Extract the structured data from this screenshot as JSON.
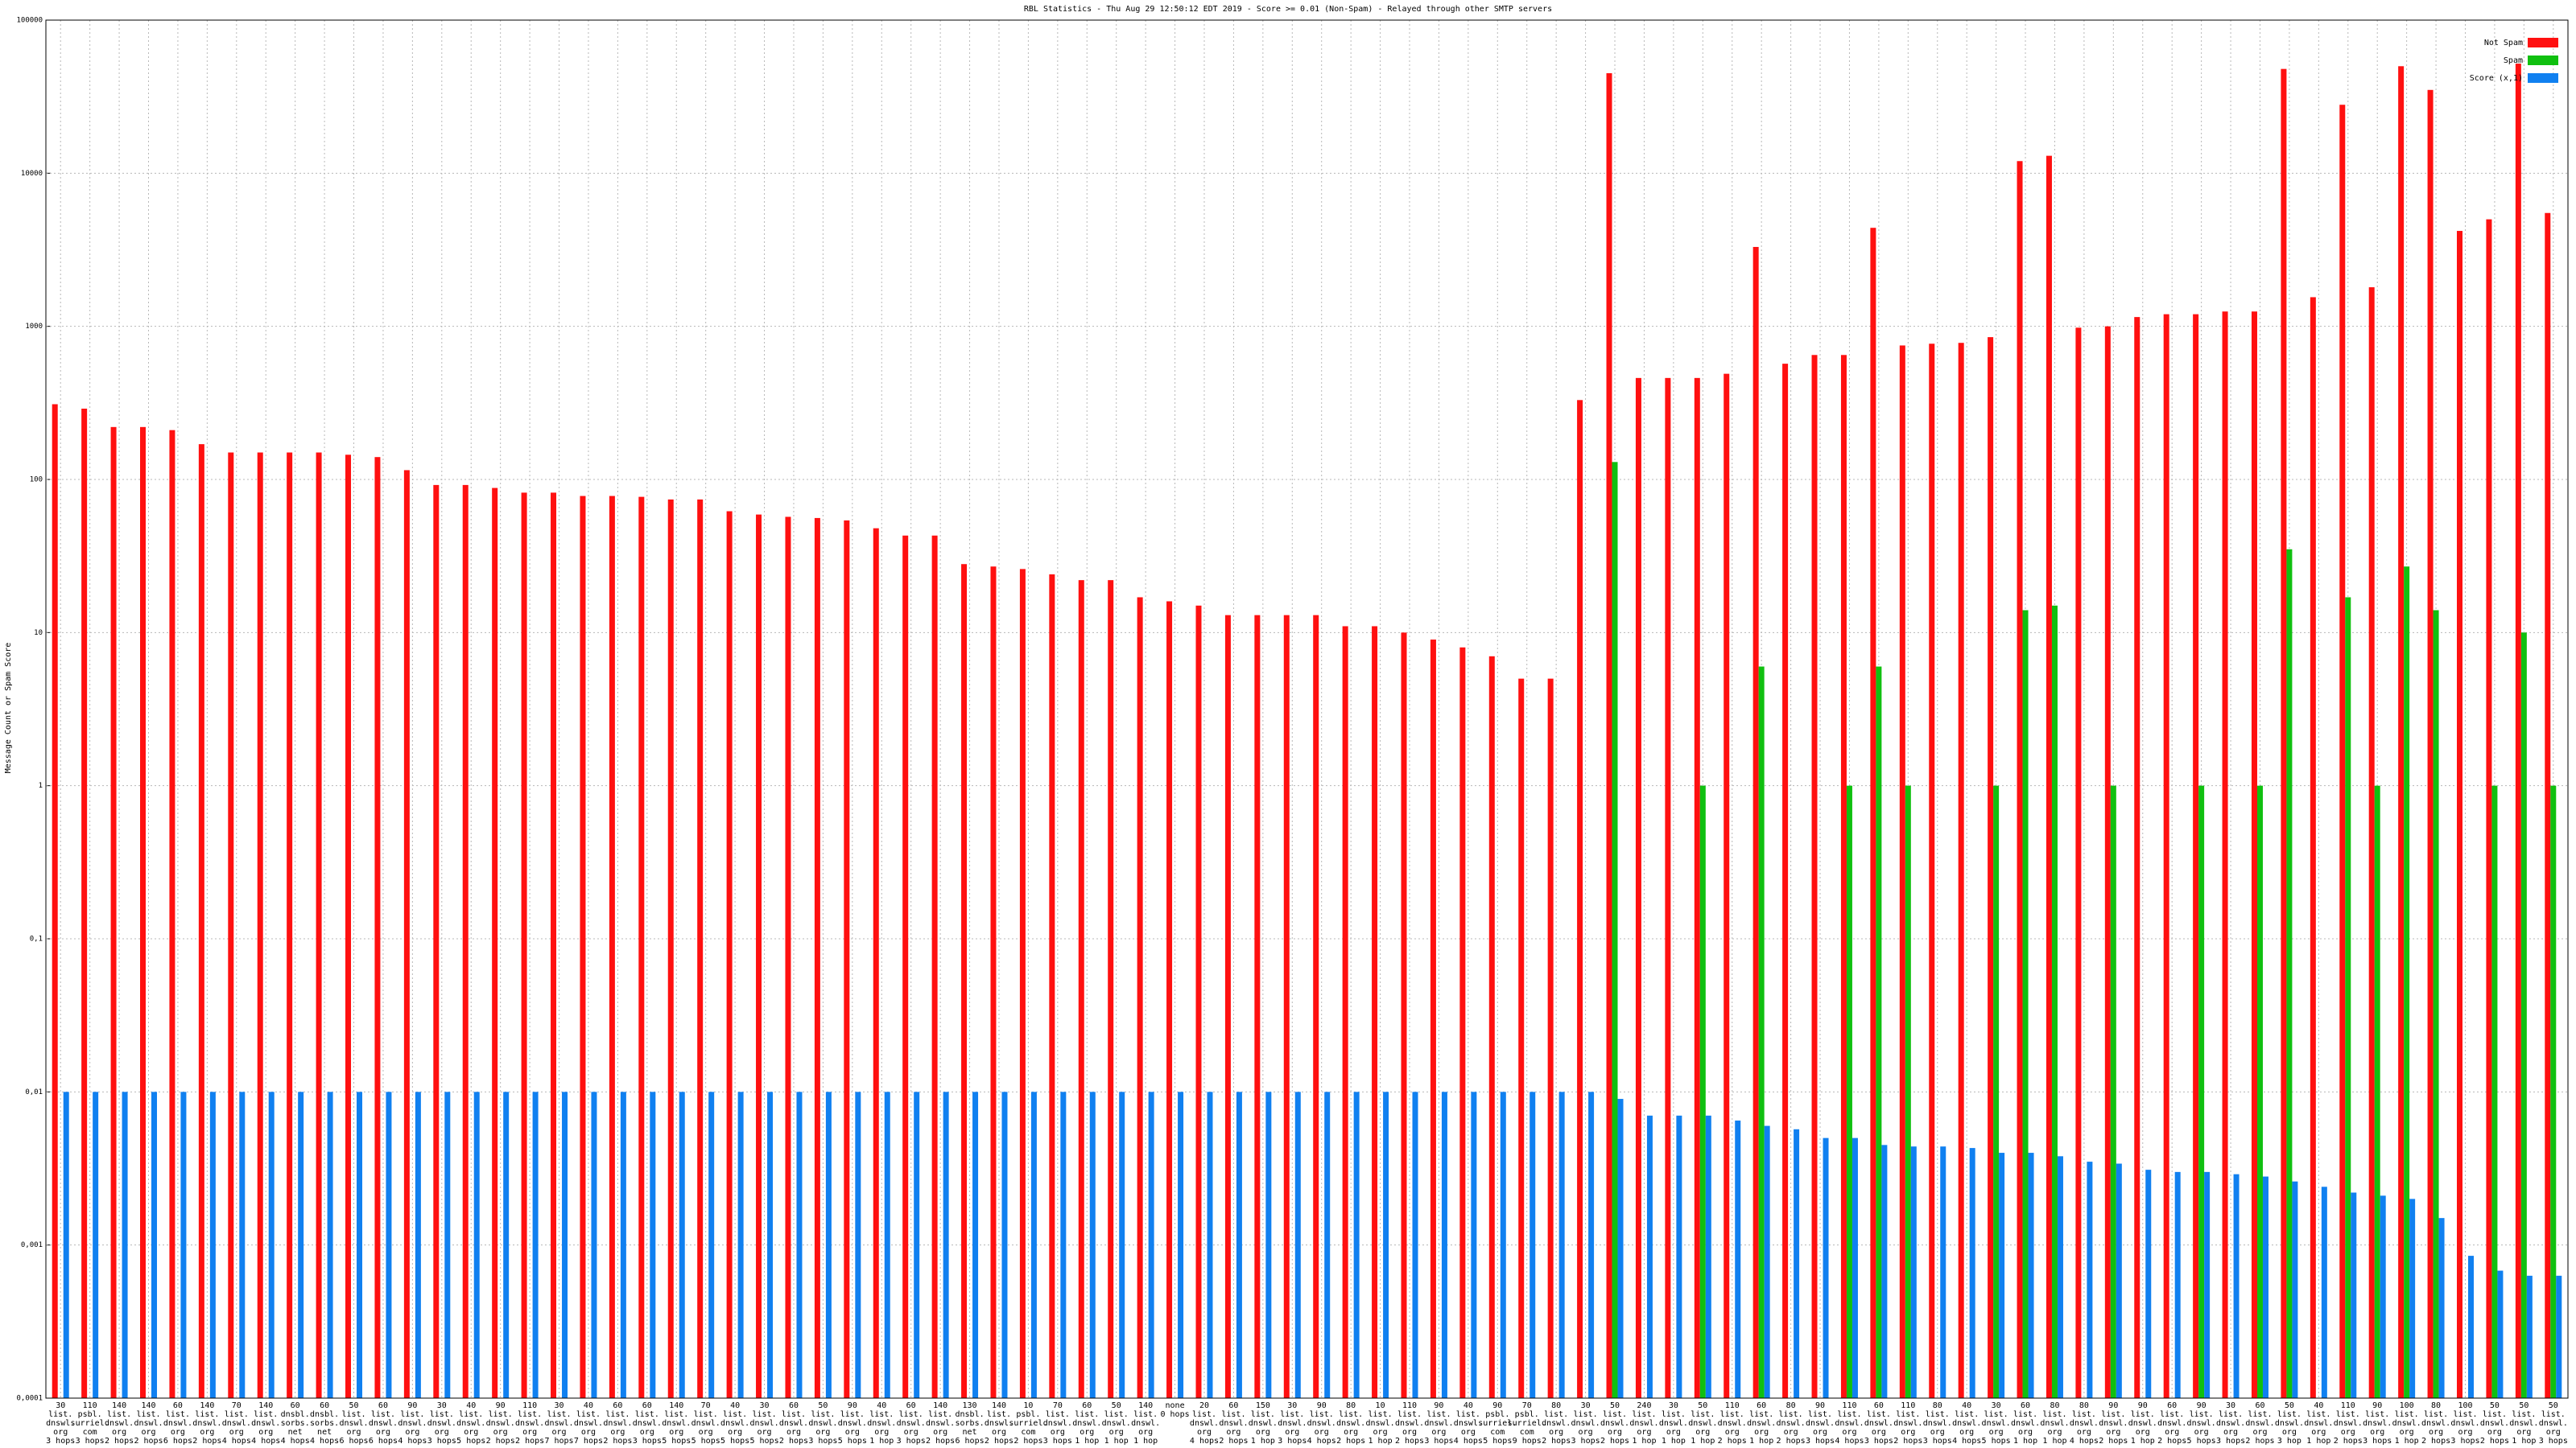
{
  "chart_data": {
    "type": "bar",
    "title": "RBL Statistics - Thu Aug 29 12:50:12 EDT 2019 - Score >= 0.01 (Non-Spam) - Relayed through other SMTP servers",
    "ylabel": "Message Count or Spam Score",
    "log_scale": true,
    "grid": true,
    "legend": "top-right",
    "ylim": [
      0.0001,
      100000
    ],
    "yticks": [
      {
        "value": 0.0001,
        "label": "0,0001"
      },
      {
        "value": 0.001,
        "label": "0,001"
      },
      {
        "value": 0.01,
        "label": "0,01"
      },
      {
        "value": 0.1,
        "label": "0,1"
      },
      1,
      10,
      100,
      1000,
      10000,
      100000
    ],
    "categories": [
      [
        "30",
        "list.",
        "dnswl.",
        "org",
        "3 hops"
      ],
      [
        "110",
        "psbl.",
        "surriel.",
        "com",
        "3 hops"
      ],
      [
        "140",
        "list.",
        "dnswl.",
        "org",
        "2 hops"
      ],
      [
        "140",
        "list.",
        "dnswl.",
        "org",
        "2 hops"
      ],
      [
        "60",
        "list.",
        "dnswl.",
        "org",
        "6 hops"
      ],
      [
        "140",
        "list.",
        "dnswl.",
        "org",
        "2 hops"
      ],
      [
        "70",
        "list.",
        "dnswl.",
        "org",
        "4 hops"
      ],
      [
        "140",
        "list.",
        "dnswl.",
        "org",
        "4 hops"
      ],
      [
        "60",
        "dnsbl.",
        "sorbs.",
        "net",
        "4 hops"
      ],
      [
        "60",
        "dnsbl.",
        "sorbs.",
        "net",
        "4 hops"
      ],
      [
        "50",
        "list.",
        "dnswl.",
        "org",
        "6 hops"
      ],
      [
        "60",
        "list.",
        "dnswl.",
        "org",
        "6 hops"
      ],
      [
        "90",
        "list.",
        "dnswl.",
        "org",
        "4 hops"
      ],
      [
        "30",
        "list.",
        "dnswl.",
        "org",
        "3 hops"
      ],
      [
        "40",
        "list.",
        "dnswl.",
        "org",
        "5 hops"
      ],
      [
        "90",
        "list.",
        "dnswl.",
        "org",
        "2 hops"
      ],
      [
        "110",
        "list.",
        "dnswl.",
        "org",
        "2 hops"
      ],
      [
        "30",
        "list.",
        "dnswl.",
        "org",
        "7 hops"
      ],
      [
        "40",
        "list.",
        "dnswl.",
        "org",
        "7 hops"
      ],
      [
        "60",
        "list.",
        "dnswl.",
        "org",
        "2 hops"
      ],
      [
        "60",
        "list.",
        "dnswl.",
        "org",
        "3 hops"
      ],
      [
        "140",
        "list.",
        "dnswl.",
        "org",
        "5 hops"
      ],
      [
        "70",
        "list.",
        "dnswl.",
        "org",
        "5 hops"
      ],
      [
        "40",
        "list.",
        "dnswl.",
        "org",
        "5 hops"
      ],
      [
        "30",
        "list.",
        "dnswl.",
        "org",
        "5 hops"
      ],
      [
        "60",
        "list.",
        "dnswl.",
        "org",
        "2 hops"
      ],
      [
        "50",
        "list.",
        "dnswl.",
        "org",
        "3 hops"
      ],
      [
        "90",
        "list.",
        "dnswl.",
        "org",
        "5 hops"
      ],
      [
        "40",
        "list.",
        "dnswl.",
        "org",
        "1 hop"
      ],
      [
        "60",
        "list.",
        "dnswl.",
        "org",
        "3 hops"
      ],
      [
        "140",
        "list.",
        "dnswl.",
        "org",
        "2 hops"
      ],
      [
        "130",
        "dnsbl.",
        "sorbs.",
        "net",
        "6 hops"
      ],
      [
        "140",
        "list.",
        "dnswl.",
        "org",
        "2 hops"
      ],
      [
        "10",
        "psbl.",
        "surriel.",
        "com",
        "2 hops"
      ],
      [
        "70",
        "list.",
        "dnswl.",
        "org",
        "3 hops"
      ],
      [
        "60",
        "list.",
        "dnswl.",
        "org",
        "1 hop"
      ],
      [
        "50",
        "list.",
        "dnswl.",
        "org",
        "1 hop"
      ],
      [
        "140",
        "list.",
        "dnswl.",
        "org",
        "1 hop"
      ],
      [
        "none",
        "0 hops",
        "",
        "",
        ""
      ],
      [
        "20",
        "list.",
        "dnswl.",
        "org",
        "4 hops"
      ],
      [
        "60",
        "list.",
        "dnswl.",
        "org",
        "2 hops"
      ],
      [
        "150",
        "list.",
        "dnswl.",
        "org",
        "1 hop"
      ],
      [
        "30",
        "list.",
        "dnswl.",
        "org",
        "3 hops"
      ],
      [
        "90",
        "list.",
        "dnswl.",
        "org",
        "4 hops"
      ],
      [
        "80",
        "list.",
        "dnswl.",
        "org",
        "2 hops"
      ],
      [
        "10",
        "list.",
        "dnswl.",
        "org",
        "1 hop"
      ],
      [
        "110",
        "list.",
        "dnswl.",
        "org",
        "2 hops"
      ],
      [
        "90",
        "list.",
        "dnswl.",
        "org",
        "3 hops"
      ],
      [
        "40",
        "list.",
        "dnswl.",
        "org",
        "4 hops"
      ],
      [
        "90",
        "psbl.",
        "surriel.",
        "com",
        "5 hops"
      ],
      [
        "70",
        "psbl.",
        "surriel.",
        "com",
        "9 hops"
      ],
      [
        "80",
        "list.",
        "dnswl.",
        "org",
        "2 hops"
      ],
      [
        "30",
        "list.",
        "dnswl.",
        "org",
        "3 hops"
      ],
      [
        "50",
        "list.",
        "dnswl.",
        "org",
        "2 hops"
      ],
      [
        "240",
        "list.",
        "dnswl.",
        "org",
        "1 hop"
      ],
      [
        "30",
        "list.",
        "dnswl.",
        "org",
        "1 hop"
      ],
      [
        "50",
        "list.",
        "dnswl.",
        "org",
        "1 hop"
      ],
      [
        "110",
        "list.",
        "dnswl.",
        "org",
        "2 hops"
      ],
      [
        "60",
        "list.",
        "dnswl.",
        "org",
        "1 hop"
      ],
      [
        "80",
        "list.",
        "dnswl.",
        "org",
        "2 hops"
      ],
      [
        "90",
        "list.",
        "dnswl.",
        "org",
        "3 hops"
      ],
      [
        "110",
        "list.",
        "dnswl.",
        "org",
        "4 hops"
      ],
      [
        "60",
        "list.",
        "dnswl.",
        "org",
        "3 hops"
      ],
      [
        "110",
        "list.",
        "dnswl.",
        "org",
        "2 hops"
      ],
      [
        "80",
        "list.",
        "dnswl.",
        "org",
        "3 hops"
      ],
      [
        "40",
        "list.",
        "dnswl.",
        "org",
        "4 hops"
      ],
      [
        "30",
        "list.",
        "dnswl.",
        "org",
        "5 hops"
      ],
      [
        "60",
        "list.",
        "dnswl.",
        "org",
        "1 hop"
      ],
      [
        "80",
        "list.",
        "dnswl.",
        "org",
        "1 hop"
      ],
      [
        "80",
        "list.",
        "dnswl.",
        "org",
        "4 hops"
      ],
      [
        "90",
        "list.",
        "dnswl.",
        "org",
        "2 hops"
      ],
      [
        "90",
        "list.",
        "dnswl.",
        "org",
        "1 hop"
      ],
      [
        "60",
        "list.",
        "dnswl.",
        "org",
        "2 hops"
      ],
      [
        "90",
        "list.",
        "dnswl.",
        "org",
        "5 hops"
      ],
      [
        "30",
        "list.",
        "dnswl.",
        "org",
        "3 hops"
      ],
      [
        "60",
        "list.",
        "dnswl.",
        "org",
        "2 hops"
      ],
      [
        "50",
        "list.",
        "dnswl.",
        "org",
        "3 hop"
      ],
      [
        "40",
        "list.",
        "dnswl.",
        "org",
        "1 hop"
      ],
      [
        "110",
        "list.",
        "dnswl.",
        "org",
        "2 hops"
      ],
      [
        "90",
        "list.",
        "dnswl.",
        "org",
        "3 hops"
      ],
      [
        "100",
        "list.",
        "dnswl.",
        "org",
        "1 hop"
      ],
      [
        "80",
        "list.",
        "dnswl.",
        "org",
        "2 hops"
      ],
      [
        "100",
        "list.",
        "dnswl.",
        "org",
        "3 hops"
      ],
      [
        "50",
        "list.",
        "dnswl.",
        "org",
        "2 hops"
      ],
      [
        "50",
        "list.",
        "dnswl.",
        "org",
        "1 hop"
      ],
      [
        "50",
        "list.",
        "dnswl.",
        "org",
        "3 hops"
      ]
    ],
    "series": [
      {
        "name": "Not Spam",
        "color": "#ff1010",
        "values": [
          310,
          290,
          220,
          220,
          210,
          170,
          150,
          150,
          150,
          150,
          145,
          140,
          115,
          92,
          92,
          88,
          82,
          82,
          78,
          78,
          77,
          74,
          74,
          62,
          59,
          57,
          56,
          54,
          48,
          43,
          43,
          28,
          27,
          26,
          24,
          22,
          22,
          17,
          16,
          15,
          13,
          13,
          13,
          13,
          11,
          11,
          10,
          9,
          8,
          7,
          5,
          5,
          330,
          45000,
          460,
          460,
          460,
          490,
          3300,
          570,
          650,
          650,
          4400,
          750,
          770,
          780,
          850,
          12000,
          13000,
          980,
          1000,
          1150,
          1200,
          1200,
          1250,
          1250,
          48000,
          1550,
          28000,
          1800,
          50000,
          35000,
          4200,
          5000,
          52000,
          5500
        ]
      },
      {
        "name": "Spam",
        "color": "#10c010",
        "values": [
          null,
          null,
          null,
          null,
          null,
          null,
          null,
          null,
          null,
          null,
          null,
          null,
          null,
          null,
          null,
          null,
          null,
          null,
          null,
          null,
          null,
          null,
          null,
          null,
          null,
          null,
          null,
          null,
          null,
          null,
          null,
          null,
          null,
          null,
          null,
          null,
          null,
          null,
          null,
          null,
          null,
          null,
          null,
          null,
          null,
          null,
          null,
          null,
          null,
          null,
          null,
          null,
          null,
          130,
          null,
          null,
          1,
          null,
          6,
          null,
          null,
          1,
          6,
          1,
          null,
          null,
          1,
          14,
          15,
          null,
          1,
          null,
          null,
          1,
          null,
          1,
          35,
          null,
          17,
          1,
          27,
          14,
          null,
          1,
          10,
          1
        ]
      },
      {
        "name": "Score (x,1)",
        "color": "#1080f0",
        "values": [
          0.01,
          0.01,
          0.01,
          0.01,
          0.01,
          0.01,
          0.01,
          0.01,
          0.01,
          0.01,
          0.01,
          0.01,
          0.01,
          0.01,
          0.01,
          0.01,
          0.01,
          0.01,
          0.01,
          0.01,
          0.01,
          0.01,
          0.01,
          0.01,
          0.01,
          0.01,
          0.01,
          0.01,
          0.01,
          0.01,
          0.01,
          0.01,
          0.01,
          0.01,
          0.01,
          0.01,
          0.01,
          0.01,
          0.01,
          0.01,
          0.01,
          0.01,
          0.01,
          0.01,
          0.01,
          0.01,
          0.01,
          0.01,
          0.01,
          0.01,
          0.01,
          0.01,
          0.01,
          0.009,
          0.007,
          0.007,
          0.007,
          0.0065,
          0.006,
          0.0057,
          0.005,
          0.005,
          0.0045,
          0.0044,
          0.0044,
          0.0043,
          0.004,
          0.004,
          0.0038,
          0.0035,
          0.0034,
          0.0031,
          0.003,
          0.003,
          0.0029,
          0.0028,
          0.0026,
          0.0024,
          0.0022,
          0.0021,
          0.002,
          0.0015,
          0.00085,
          0.00068,
          0.00063,
          0.00063
        ]
      }
    ]
  }
}
